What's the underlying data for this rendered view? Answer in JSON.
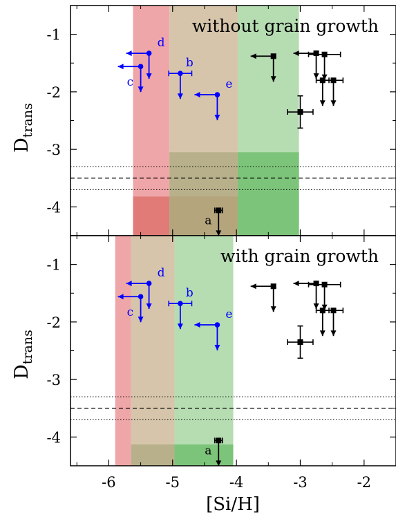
{
  "chart_data": [
    {
      "type": "scatter",
      "title": "without grain growth",
      "ylabel": "D",
      "ylabel_sub": "trans",
      "xlim": [
        -6.6,
        -1.5
      ],
      "ylim": [
        -4.5,
        -0.5
      ],
      "yticks": [
        "-1",
        "-2",
        "-3",
        "-4"
      ],
      "bands": [
        {
          "x0": -5.62,
          "x1": -5.05,
          "color": "#efa6a8",
          "lower_y": -3.82,
          "lower_color": "#e07b78"
        },
        {
          "x0": -5.05,
          "x1": -3.98,
          "color": "#d6c5ab",
          "lower_y": -3.05,
          "lower_color": "#b7b08a",
          "lower2_y": -3.82,
          "lower2_color": "#b4a57d"
        },
        {
          "x0": -3.98,
          "x1": -3.02,
          "color": "#b6ddb2",
          "lower_y": -3.05,
          "lower_color": "#7cc47a"
        }
      ],
      "reference_lines": {
        "dashed": -3.5,
        "dotted": [
          -3.3,
          -3.7
        ]
      },
      "points_blue": [
        {
          "label": "d",
          "x": -5.37,
          "y": -1.33,
          "xerr": "left",
          "yerr": "down"
        },
        {
          "label": "c",
          "x": -5.5,
          "y": -1.56,
          "xerr": "left",
          "yerr": "down"
        },
        {
          "label": "b",
          "x": -4.88,
          "y": -1.68,
          "xerr": 0.18,
          "yerr": "down"
        },
        {
          "label": "e",
          "x": -4.3,
          "y": -2.05,
          "xerr": "left",
          "yerr": "down"
        }
      ],
      "points_black": [
        {
          "label": "a",
          "x": -4.28,
          "y": -4.06,
          "xerr": 0.06,
          "yerr": "down"
        },
        {
          "x": -3.42,
          "y": -1.38,
          "xerr": "left",
          "yerr": "down"
        },
        {
          "x": -2.75,
          "y": -1.33,
          "xerr": "left",
          "yerr": "down"
        },
        {
          "x": -2.62,
          "y": -1.35,
          "xerr": 0.25,
          "yerr": "down"
        },
        {
          "x": -2.65,
          "y": -1.8,
          "xerr": 0.1,
          "yerr": "down"
        },
        {
          "x": -2.48,
          "y": -1.8,
          "xerr": 0.15,
          "yerr": "down"
        },
        {
          "x": -3.0,
          "y": -2.35,
          "xerr": 0.2,
          "yerr": 0.28
        }
      ]
    },
    {
      "type": "scatter",
      "title": "with grain growth",
      "ylabel": "D",
      "ylabel_sub": "trans",
      "xlabel": "[Si/H]",
      "xlim": [
        -6.6,
        -1.5
      ],
      "ylim": [
        -4.5,
        -0.5
      ],
      "xticks": [
        "-6",
        "-5",
        "-4",
        "-3",
        "-2"
      ],
      "yticks": [
        "-1",
        "-2",
        "-3",
        "-4"
      ],
      "bands": [
        {
          "x0": -5.9,
          "x1": -5.65,
          "color": "#efa6a8"
        },
        {
          "x0": -5.65,
          "x1": -4.97,
          "color": "#d6c5ab",
          "lower_y": -4.13,
          "lower_color": "#b7b08a"
        },
        {
          "x0": -4.97,
          "x1": -4.05,
          "color": "#b6ddb2",
          "lower_y": -4.13,
          "lower_color": "#7cc47a"
        }
      ],
      "reference_lines": {
        "dashed": -3.5,
        "dotted": [
          -3.3,
          -3.7
        ]
      },
      "points_blue": [
        {
          "label": "d",
          "x": -5.37,
          "y": -1.33,
          "xerr": "left",
          "yerr": "down"
        },
        {
          "label": "c",
          "x": -5.5,
          "y": -1.56,
          "xerr": "left",
          "yerr": "down"
        },
        {
          "label": "b",
          "x": -4.88,
          "y": -1.68,
          "xerr": 0.18,
          "yerr": "down"
        },
        {
          "label": "e",
          "x": -4.3,
          "y": -2.05,
          "xerr": "left",
          "yerr": "down"
        }
      ],
      "points_black": [
        {
          "label": "a",
          "x": -4.28,
          "y": -4.06,
          "xerr": 0.06,
          "yerr": "down"
        },
        {
          "x": -3.42,
          "y": -1.38,
          "xerr": "left",
          "yerr": "down"
        },
        {
          "x": -2.75,
          "y": -1.33,
          "xerr": "left",
          "yerr": "down"
        },
        {
          "x": -2.62,
          "y": -1.35,
          "xerr": 0.25,
          "yerr": "down"
        },
        {
          "x": -2.65,
          "y": -1.8,
          "xerr": 0.1,
          "yerr": "down"
        },
        {
          "x": -2.48,
          "y": -1.8,
          "xerr": 0.15,
          "yerr": "down"
        },
        {
          "x": -3.0,
          "y": -2.35,
          "xerr": 0.2,
          "yerr": 0.28
        }
      ]
    }
  ]
}
